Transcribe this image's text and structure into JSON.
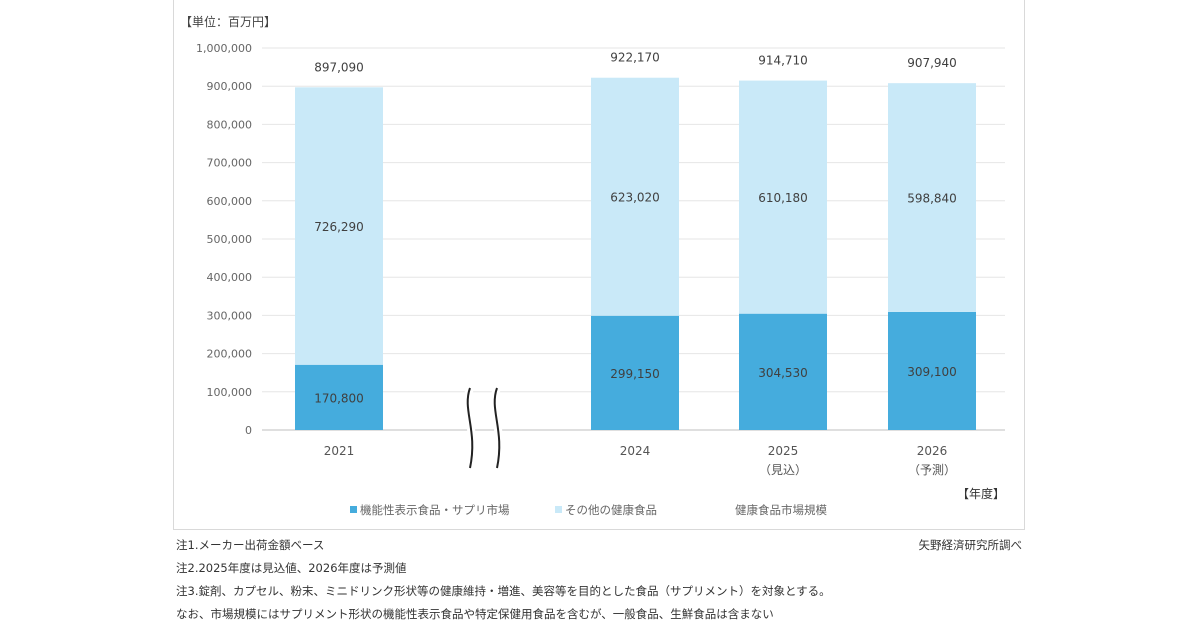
{
  "chart_data": {
    "type": "bar",
    "stacked": true,
    "unit_label": "【単位：百万円】",
    "xlabel": "【年度】",
    "categories": [
      "2021",
      "2024",
      "2025",
      "2026"
    ],
    "category_sublabels": [
      "",
      "",
      "（見込）",
      "（予測）"
    ],
    "axis_break_between": [
      "2021",
      "2024"
    ],
    "ylim": [
      0,
      1000000
    ],
    "yticks": [
      "0",
      "100,000",
      "200,000",
      "300,000",
      "400,000",
      "500,000",
      "600,000",
      "700,000",
      "800,000",
      "900,000",
      "1,000,000"
    ],
    "grid": true,
    "series": [
      {
        "name": "機能性表示食品・サプリ市場",
        "color": "#45ACDD",
        "values": [
          170800,
          299150,
          304530,
          309100
        ],
        "labels": [
          "170,800",
          "299,150",
          "304,530",
          "309,100"
        ]
      },
      {
        "name": "その他の健康食品",
        "color": "#C9E9F8",
        "values": [
          726290,
          623020,
          610180,
          598840
        ],
        "labels": [
          "726,290",
          "623,020",
          "610,180",
          "598,840"
        ]
      }
    ],
    "totals": {
      "name": "健康食品市場規模",
      "values": [
        897090,
        922170,
        914710,
        907940
      ],
      "labels": [
        "897,090",
        "922,170",
        "914,710",
        "907,940"
      ]
    },
    "legend_position": "bottom"
  },
  "notes": [
    "注1.メーカー出荷金額ベース",
    "注2.2025年度は見込値、2026年度は予測値",
    "注3.錠剤、カプセル、粉末、ミニドリンク形状等の健康維持・増進、美容等を目的とした食品（サプリメント）を対象とする。",
    "なお、市場規模にはサプリメント形状の機能性表示食品や特定保健用食品を含むが、一般食品、生鮮食品は含まない"
  ],
  "source": "矢野経済研究所調べ"
}
